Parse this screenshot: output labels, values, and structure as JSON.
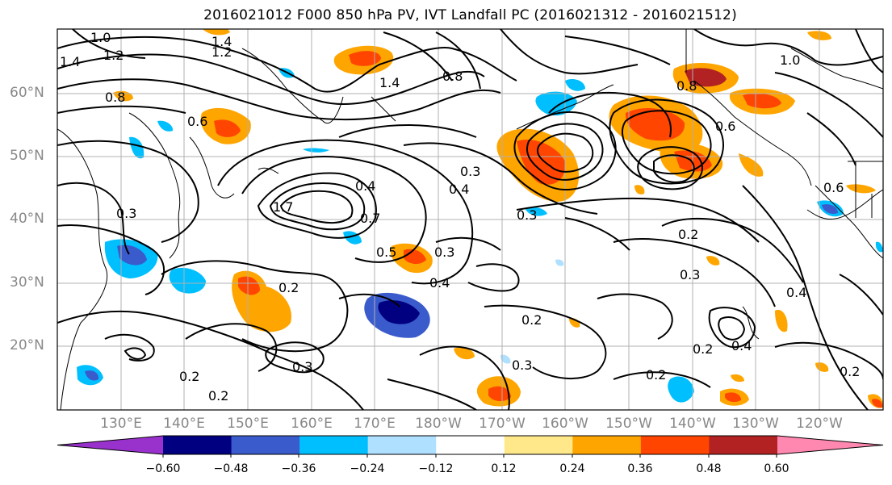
{
  "title": "2016021012 F000 850 hPa PV, IVT Landfall PC (2016021312 - 2016021512)",
  "map": {
    "lat_labels": [
      "60°N",
      "50°N",
      "40°N",
      "30°N",
      "20°N"
    ],
    "lon_labels": [
      "130°E",
      "140°E",
      "150°E",
      "160°E",
      "170°E",
      "180°W",
      "170°W",
      "160°W",
      "150°W",
      "140°W",
      "130°W",
      "120°W"
    ],
    "contour_labels": [
      "1.0",
      "1.2",
      "1.4",
      "1.4",
      "1.2",
      "0.8",
      "1.4",
      "1.7",
      "0.3",
      "0.4",
      "0.8",
      "0.3",
      "0.6",
      "0.4",
      "0.7",
      "0.5",
      "0.3",
      "0.4",
      "0.2",
      "0.3",
      "0.2",
      "0.2",
      "0.3",
      "0.2",
      "0.2",
      "0.4",
      "0.2",
      "0.3",
      "0.4",
      "0.8",
      "0.6",
      "1.0",
      "0.6",
      "0.2",
      "0.2",
      "0.3"
    ]
  },
  "colorbar": {
    "labels": [
      "−0.60",
      "−0.48",
      "−0.36",
      "−0.24",
      "−0.12",
      "0.12",
      "0.24",
      "0.36",
      "0.48",
      "0.60"
    ],
    "colors": [
      "#9932CC",
      "#000080",
      "#3A5BCB",
      "#00BFFF",
      "#B0E0FF",
      "#FFFFFF",
      "#FFE88A",
      "#FFA500",
      "#FF4500",
      "#B22222",
      "#FF88B0"
    ]
  }
}
